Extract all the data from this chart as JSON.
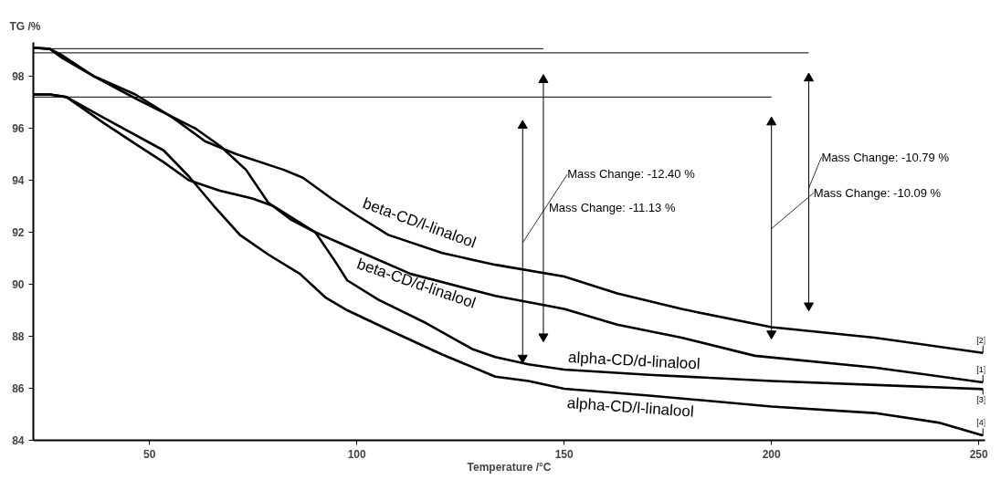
{
  "chart_data": {
    "type": "line",
    "xlabel": "Temperature /°C",
    "ylabel": "TG /%",
    "xlim": [
      22,
      251.5
    ],
    "ylim": [
      84,
      99.3
    ],
    "xticks": [
      50,
      100,
      150,
      200,
      250
    ],
    "yticks": [
      84,
      86,
      88,
      90,
      92,
      94,
      96,
      98
    ],
    "grid": false,
    "line_style": "solid",
    "marker": "none",
    "series": [
      {
        "name": "beta-CD/l-linalool",
        "color": "#000000",
        "x": [
          22,
          26,
          29,
          36.6,
          46.6,
          55.7,
          63.4,
          71,
          82.4,
          87,
          93.9,
          100,
          107.6,
          120.6,
          133.4,
          150,
          162.8,
          178.3,
          200,
          224.8,
          251
        ],
        "values": [
          99.1,
          99.05,
          98.8,
          98.0,
          97.3,
          96.4,
          95.5,
          95.0,
          94.4,
          94.1,
          93.3,
          92.65,
          91.9,
          91.2,
          90.75,
          90.3,
          89.65,
          89.05,
          88.35,
          87.95,
          87.36
        ]
      },
      {
        "name": "beta-CD/d-linalool",
        "color": "#000000",
        "x": [
          22,
          26,
          30,
          39,
          46.6,
          53.4,
          59.5,
          67,
          74.8,
          80,
          90,
          100,
          113,
          133.4,
          150,
          162.8,
          178.3,
          196,
          224.8,
          251
        ],
        "values": [
          97.3,
          97.3,
          97.2,
          96.2,
          95.4,
          94.7,
          94.0,
          93.6,
          93.3,
          93.0,
          92.0,
          91.3,
          90.4,
          89.55,
          89.05,
          88.45,
          87.95,
          87.25,
          86.8,
          86.23
        ]
      },
      {
        "name": "alpha-CD/l-linalool",
        "color": "#000000",
        "x": [
          22,
          26,
          30,
          39,
          53.4,
          59.5,
          65.6,
          71.8,
          78.6,
          86.3,
          92.4,
          97.7,
          109,
          120.6,
          133.4,
          141.4,
          150,
          170.5,
          200,
          224.8,
          240.3,
          251
        ],
        "values": [
          97.3,
          97.3,
          97.2,
          96.4,
          95.15,
          94.15,
          93.0,
          91.9,
          91.15,
          90.4,
          89.5,
          89.0,
          88.15,
          87.3,
          86.45,
          86.28,
          85.98,
          85.72,
          85.3,
          85.05,
          84.68,
          84.18
        ]
      },
      {
        "name": "alpha-CD/d-linalool",
        "color": "#000000",
        "x": [
          22,
          26,
          29,
          36.6,
          46.6,
          61,
          67.2,
          73.3,
          78.6,
          84,
          90,
          94.7,
          97.7,
          105.3,
          116.8,
          128,
          133.4,
          141.4,
          150,
          170.5,
          200,
          251
        ],
        "values": [
          99.1,
          99.05,
          98.7,
          98.0,
          97.15,
          96.0,
          95.3,
          94.4,
          93.15,
          92.5,
          92.0,
          90.9,
          90.15,
          89.4,
          88.5,
          87.5,
          87.2,
          86.92,
          86.72,
          86.52,
          86.28,
          85.97
        ]
      },
      {
        "color": "#000000",
        "x": [
          22,
          145
        ],
        "values": [
          99.06,
          99.06
        ]
      },
      {
        "color": "#000000",
        "x": [
          22,
          209
        ],
        "values": [
          98.9,
          98.9
        ]
      },
      {
        "color": "#000000",
        "x": [
          22,
          200
        ],
        "values": [
          97.2,
          97.2
        ]
      },
      {
        "color": "#000000",
        "marker": "triangle",
        "x": [
          140,
          140
        ],
        "values": [
          96.1,
          87.17
        ]
      },
      {
        "color": "#000000",
        "marker": "triangle",
        "x": [
          145,
          145
        ],
        "values": [
          97.86,
          87.99
        ]
      },
      {
        "color": "#000000",
        "marker": "triangle",
        "x": [
          200,
          200
        ],
        "values": [
          96.23,
          88.1
        ]
      },
      {
        "color": "#000000",
        "marker": "triangle",
        "x": [
          209,
          209
        ],
        "values": [
          97.92,
          89.18
        ]
      }
    ],
    "annotations": [
      {
        "text": "Mass Change: -12.40 %",
        "x": 140,
        "y": 91.6
      },
      {
        "text": "Mass Change: -11.13 %",
        "x": 145,
        "y": 92.96
      },
      {
        "text": "Mass Change: -10.79 %",
        "x": 209,
        "y": 93.7
      },
      {
        "text": "Mass Change: -10.09 %",
        "x": 200,
        "y": 92.14
      },
      {
        "text": "[2]",
        "x": 251,
        "y": 87.36
      },
      {
        "text": "[1]",
        "x": 251,
        "y": 86.23
      },
      {
        "text": "[3]",
        "x": 251,
        "y": 85.97
      },
      {
        "text": "[4]",
        "x": 251,
        "y": 84.18
      }
    ]
  }
}
